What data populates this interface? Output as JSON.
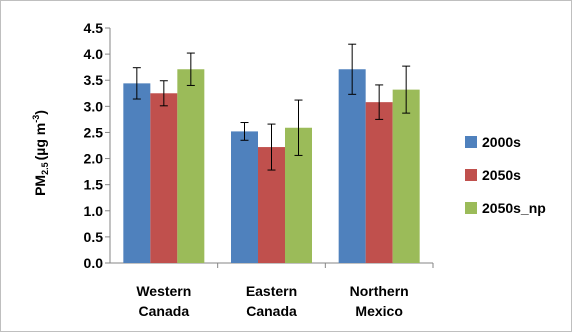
{
  "chart_data": {
    "type": "bar",
    "title": "",
    "xlabel": "",
    "ylabel_main": "PM",
    "ylabel_sub": "2.5",
    "ylabel_unit": "(µg m",
    "ylabel_exp": "-3",
    "ylabel_close": ")",
    "ylim": [
      0,
      4.5
    ],
    "yticks": [
      "0.0",
      "0.5",
      "1.0",
      "1.5",
      "2.0",
      "2.5",
      "3.0",
      "3.5",
      "4.0",
      "4.5"
    ],
    "grid": false,
    "legend_position": "right",
    "categories": [
      [
        "Western",
        "Canada"
      ],
      [
        "Eastern",
        "Canada"
      ],
      [
        "Northern",
        "Mexico"
      ]
    ],
    "series": [
      {
        "name": "2000s",
        "color": "#4f81bd",
        "values": [
          3.44,
          2.52,
          3.71
        ],
        "error": [
          0.3,
          0.17,
          0.48
        ]
      },
      {
        "name": "2050s",
        "color": "#c0504d",
        "values": [
          3.25,
          2.22,
          3.08
        ],
        "error": [
          0.24,
          0.44,
          0.33
        ]
      },
      {
        "name": "2050s_np",
        "color": "#9bbb59",
        "values": [
          3.71,
          2.59,
          3.32
        ],
        "error": [
          0.31,
          0.53,
          0.45
        ]
      }
    ]
  }
}
